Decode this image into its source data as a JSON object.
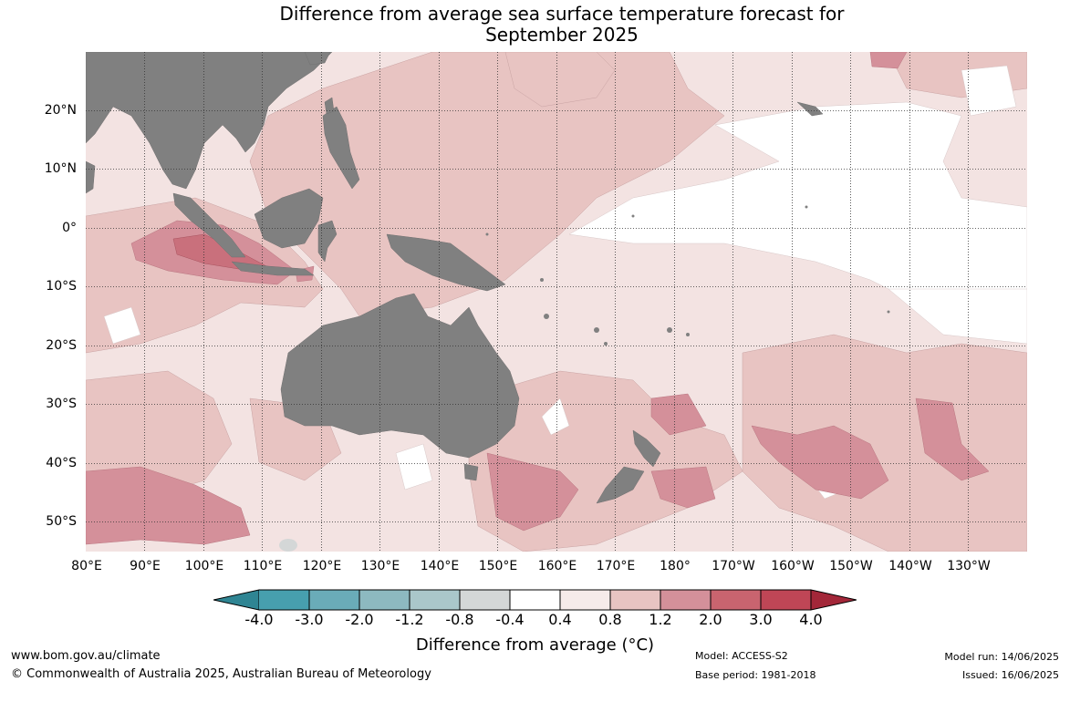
{
  "title": {
    "line1": "Difference from average sea surface temperature forecast for",
    "line2": "September 2025"
  },
  "map": {
    "lat_labels": [
      "20°N",
      "10°N",
      "0°",
      "10°S",
      "20°S",
      "30°S",
      "40°S",
      "50°S"
    ],
    "lon_labels": [
      "80°E",
      "90°E",
      "100°E",
      "110°E",
      "120°E",
      "130°E",
      "140°E",
      "150°E",
      "160°E",
      "170°E",
      "180°",
      "170°W",
      "160°W",
      "150°W",
      "140°W",
      "130°W"
    ],
    "land_color": "#808080",
    "anomaly_palette": {
      "0.4 to 0.8": "#f3e3e2",
      "0.8 to 1.2": "#e8c4c2",
      "1.2 to 2.0": "#d4909a",
      "2.0 to 3.0": "#c9707c"
    }
  },
  "colorbar": {
    "ticks": [
      "-4.0",
      "-3.0",
      "-2.0",
      "-1.2",
      "-0.8",
      "-0.4",
      "0.4",
      "0.8",
      "1.2",
      "2.0",
      "3.0",
      "4.0"
    ],
    "colors": [
      "#2f8593",
      "#479fae",
      "#6aacb8",
      "#8db9c0",
      "#aac7ca",
      "#d4d7d7",
      "#ffffff",
      "#f6ebea",
      "#e8c4c2",
      "#d4909a",
      "#c9646f",
      "#bf4656",
      "#a32739"
    ],
    "label": "Difference from average (°C)"
  },
  "footer": {
    "website": "www.bom.gov.au/climate",
    "copyright": "© Commonwealth of Australia 2025, Australian Bureau of Meteorology",
    "model": "Model: ACCESS-S2",
    "base_period": "Base period: 1981-2018",
    "model_run": "Model run: 14/06/2025",
    "issued": "Issued: 16/06/2025"
  }
}
